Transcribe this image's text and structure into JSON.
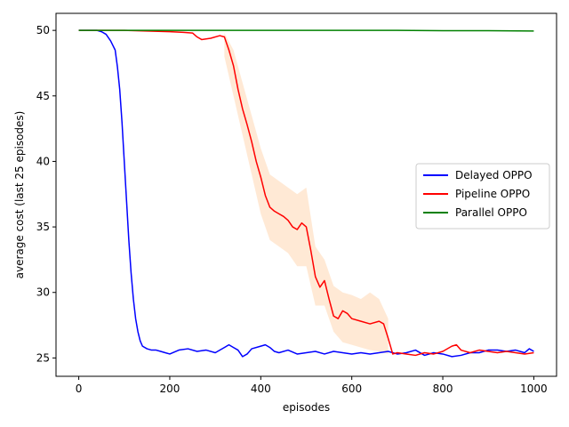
{
  "chart_data": {
    "type": "line",
    "xlabel": "episodes",
    "ylabel": "average cost (last 25 episodes)",
    "xlim": [
      -50,
      1050
    ],
    "ylim": [
      23.6,
      51.3
    ],
    "xticks": [
      0,
      200,
      400,
      600,
      800,
      1000
    ],
    "yticks": [
      25,
      30,
      35,
      40,
      45,
      50
    ],
    "grid": false,
    "legend_position": "center-right",
    "series": [
      {
        "name": "Delayed OPPO",
        "color": "#0000ff",
        "x": [
          0,
          40,
          50,
          60,
          70,
          80,
          85,
          90,
          95,
          100,
          105,
          110,
          115,
          120,
          125,
          130,
          135,
          140,
          150,
          160,
          170,
          180,
          190,
          200,
          220,
          240,
          260,
          280,
          300,
          320,
          330,
          340,
          350,
          360,
          370,
          380,
          400,
          410,
          420,
          430,
          440,
          460,
          480,
          500,
          520,
          540,
          560,
          580,
          600,
          620,
          640,
          660,
          680,
          700,
          720,
          740,
          760,
          780,
          800,
          820,
          840,
          860,
          880,
          900,
          920,
          940,
          960,
          980,
          990,
          1000
        ],
        "y": [
          50,
          50,
          49.9,
          49.7,
          49.2,
          48.5,
          47.2,
          45.5,
          43.0,
          40.0,
          37.0,
          34.0,
          31.5,
          29.5,
          28.0,
          27.0,
          26.3,
          25.9,
          25.7,
          25.6,
          25.6,
          25.5,
          25.4,
          25.3,
          25.6,
          25.7,
          25.5,
          25.6,
          25.4,
          25.8,
          26.0,
          25.8,
          25.6,
          25.1,
          25.3,
          25.7,
          25.9,
          26.0,
          25.8,
          25.5,
          25.4,
          25.6,
          25.3,
          25.4,
          25.5,
          25.3,
          25.5,
          25.4,
          25.3,
          25.4,
          25.3,
          25.4,
          25.5,
          25.3,
          25.4,
          25.6,
          25.2,
          25.4,
          25.3,
          25.1,
          25.2,
          25.4,
          25.4,
          25.6,
          25.6,
          25.5,
          25.6,
          25.4,
          25.7,
          25.5
        ]
      },
      {
        "name": "Pipeline OPPO",
        "color": "#ff0000",
        "x": [
          0,
          100,
          150,
          200,
          230,
          250,
          260,
          270,
          290,
          310,
          320,
          330,
          340,
          350,
          360,
          370,
          380,
          390,
          400,
          410,
          420,
          430,
          440,
          450,
          460,
          470,
          480,
          490,
          500,
          510,
          520,
          530,
          540,
          550,
          560,
          570,
          580,
          590,
          600,
          620,
          640,
          660,
          670,
          680,
          690,
          700,
          720,
          740,
          760,
          780,
          800,
          820,
          830,
          840,
          860,
          880,
          900,
          920,
          940,
          960,
          980,
          1000
        ],
        "y": [
          50,
          50,
          49.95,
          49.9,
          49.85,
          49.8,
          49.5,
          49.3,
          49.4,
          49.6,
          49.5,
          48.5,
          47.3,
          45.5,
          44.0,
          42.8,
          41.5,
          40.0,
          38.8,
          37.4,
          36.5,
          36.2,
          36.0,
          35.8,
          35.5,
          35.0,
          34.8,
          35.3,
          35.0,
          33.2,
          31.2,
          30.4,
          30.9,
          29.5,
          28.2,
          28.0,
          28.6,
          28.4,
          28.0,
          27.8,
          27.6,
          27.8,
          27.6,
          26.5,
          25.3,
          25.4,
          25.3,
          25.2,
          25.4,
          25.3,
          25.5,
          25.9,
          26.0,
          25.6,
          25.4,
          25.6,
          25.5,
          25.4,
          25.5,
          25.4,
          25.3,
          25.4
        ]
      },
      {
        "name": "Parallel OPPO",
        "color": "#008000",
        "x": [
          0,
          200,
          400,
          600,
          700,
          800,
          900,
          1000
        ],
        "y": [
          50,
          50,
          50,
          50,
          50,
          49.98,
          49.98,
          49.95
        ]
      }
    ],
    "bands": [
      {
        "series": "Pipeline OPPO",
        "color": "#ffdab9",
        "x": [
          320,
          340,
          360,
          380,
          400,
          420,
          440,
          460,
          480,
          500,
          520,
          540,
          560,
          580,
          600,
          620,
          640,
          660,
          680
        ],
        "upper": [
          49.8,
          48.5,
          46.0,
          43.5,
          41.0,
          39.0,
          38.5,
          38.0,
          37.5,
          38.0,
          33.5,
          32.5,
          30.5,
          30.0,
          29.8,
          29.5,
          30.0,
          29.5,
          28.0
        ],
        "lower": [
          48.0,
          45.0,
          42.0,
          39.0,
          36.0,
          34.0,
          33.5,
          33.0,
          32.0,
          32.0,
          29.0,
          29.0,
          27.0,
          26.2,
          26.0,
          25.8,
          25.6,
          25.5,
          25.3
        ]
      }
    ]
  }
}
